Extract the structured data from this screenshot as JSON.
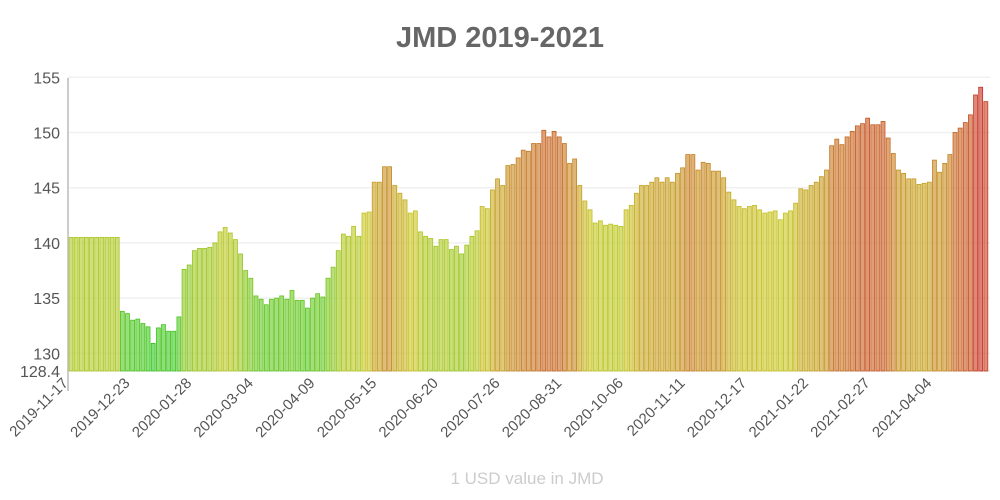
{
  "chart_data": {
    "type": "bar",
    "title": "JMD 2019-2021",
    "xlabel": "1 USD value in JMD",
    "ylabel": "",
    "ylim": [
      128.4,
      155
    ],
    "yticks": [
      "155",
      "150",
      "145",
      "140",
      "135",
      "130",
      "128.4"
    ],
    "ytick_values": [
      155,
      150,
      145,
      140,
      135,
      130,
      128.4
    ],
    "xticks": [
      "2019-11-17",
      "2019-12-23",
      "2020-01-28",
      "2020-03-04",
      "2020-04-09",
      "2020-05-15",
      "2020-06-20",
      "2020-07-26",
      "2020-08-31",
      "2020-10-06",
      "2020-11-11",
      "2020-12-17",
      "2021-01-22",
      "2021-02-27",
      "2021-04-04"
    ],
    "grid": true,
    "legend": "none",
    "color_scale": {
      "low": "#4fc94f",
      "mid": "#d4c040",
      "high": "#d83a2a"
    },
    "values": [
      140.5,
      140.5,
      140.5,
      140.5,
      140.5,
      140.5,
      140.5,
      140.5,
      140.5,
      140.5,
      133.8,
      133.6,
      133.0,
      133.1,
      132.7,
      132.4,
      130.9,
      132.3,
      132.6,
      132.0,
      132.0,
      133.3,
      137.6,
      138.0,
      139.3,
      139.5,
      139.5,
      139.6,
      140.0,
      141.0,
      141.4,
      140.9,
      140.3,
      139.0,
      137.5,
      136.8,
      135.2,
      134.9,
      134.4,
      134.9,
      135.0,
      135.2,
      134.9,
      135.7,
      134.8,
      134.8,
      134.1,
      135.0,
      135.4,
      135.1,
      136.8,
      137.8,
      139.3,
      140.8,
      140.6,
      141.5,
      140.6,
      142.7,
      142.8,
      145.5,
      145.5,
      146.9,
      146.9,
      145.2,
      144.5,
      143.9,
      142.7,
      142.9,
      141.0,
      140.6,
      140.4,
      139.7,
      140.3,
      140.3,
      139.4,
      139.7,
      139.0,
      139.8,
      140.6,
      141.1,
      143.3,
      143.1,
      144.8,
      145.8,
      145.2,
      147.0,
      147.1,
      147.7,
      148.4,
      148.3,
      149.0,
      149.0,
      150.2,
      149.6,
      150.1,
      149.6,
      149.0,
      147.2,
      147.6,
      145.2,
      143.8,
      143.0,
      141.8,
      142.0,
      141.6,
      141.7,
      141.6,
      141.5,
      143.0,
      143.4,
      144.5,
      145.2,
      145.2,
      145.5,
      145.9,
      145.5,
      145.9,
      145.5,
      146.3,
      146.8,
      148.0,
      148.0,
      146.6,
      147.3,
      147.2,
      146.5,
      146.5,
      145.9,
      144.6,
      143.9,
      143.3,
      143.1,
      143.3,
      143.4,
      143.0,
      142.7,
      142.8,
      142.9,
      142.1,
      142.7,
      142.9,
      143.6,
      144.9,
      144.8,
      145.2,
      145.5,
      146.0,
      146.6,
      148.8,
      149.4,
      148.9,
      149.6,
      150.1,
      150.6,
      150.8,
      151.3,
      150.7,
      150.7,
      151.0,
      149.5,
      148.1,
      146.6,
      146.3,
      145.8,
      145.8,
      145.3,
      145.4,
      145.5,
      147.5,
      146.4,
      147.2,
      148.0,
      150.0,
      150.4,
      150.9,
      151.6,
      153.4,
      154.1,
      152.8
    ]
  }
}
